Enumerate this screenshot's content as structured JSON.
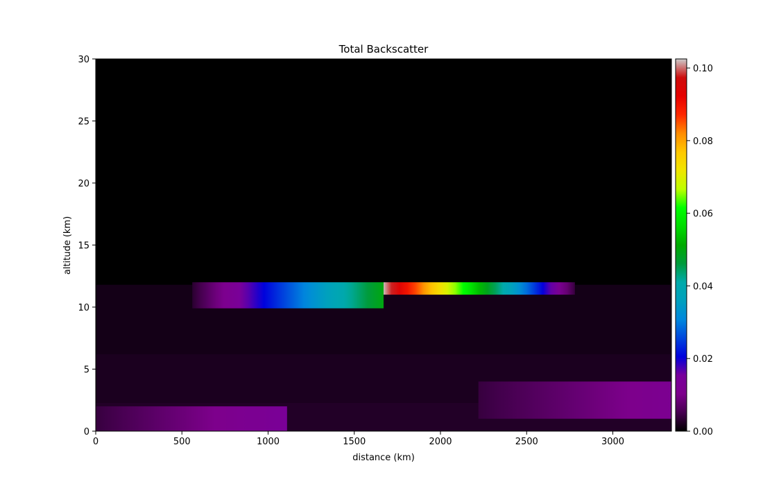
{
  "chart_data": {
    "type": "heatmap",
    "title": "Total Backscatter",
    "xlabel": "distance (km)",
    "ylabel": "altitude (km)",
    "xlim": [
      0,
      3340
    ],
    "ylim": [
      0,
      30
    ],
    "xticks": [
      0,
      500,
      1000,
      1500,
      2000,
      2500,
      3000
    ],
    "yticks": [
      0,
      5,
      10,
      15,
      20,
      25,
      30
    ],
    "colorbar": {
      "colormap": "nipy_spectral",
      "range": [
        0,
        0.1025
      ],
      "ticks": [
        0.0,
        0.02,
        0.04,
        0.06,
        0.08,
        0.1
      ],
      "tick_labels": [
        "0.00",
        "0.02",
        "0.04",
        "0.06",
        "0.08",
        "0.10"
      ]
    },
    "background_value": 0.0,
    "layers": [
      {
        "name": "layer-upper-trop",
        "x_range": [
          0,
          3340
        ],
        "y_range": [
          6.2,
          11.8
        ],
        "value_start": 0.0015,
        "value_end": 0.0015
      },
      {
        "name": "layer-mid-trop",
        "x_range": [
          0,
          3340
        ],
        "y_range": [
          2.3,
          6.2
        ],
        "value_start": 0.002,
        "value_end": 0.002
      },
      {
        "name": "layer-boundary",
        "x_range": [
          0,
          3340
        ],
        "y_range": [
          0,
          2.3
        ],
        "value_start": 0.0025,
        "value_end": 0.0025
      },
      {
        "name": "aerosol-low-west",
        "x_range": [
          0,
          1110
        ],
        "y_range": [
          0,
          2.0
        ],
        "value_start": 0.004,
        "value_end": 0.014
      },
      {
        "name": "aerosol-low-east",
        "x_range": [
          2220,
          3340
        ],
        "y_range": [
          1.0,
          4.0
        ],
        "value_start": 0.004,
        "value_end": 0.012
      },
      {
        "name": "cloud-west",
        "x_range": [
          560,
          1670
        ],
        "y_range": [
          9.9,
          12.0
        ],
        "value_start": 0.003,
        "value_end": 0.05
      },
      {
        "name": "cloud-east",
        "x_range": [
          1670,
          2780
        ],
        "y_range": [
          11.0,
          12.0
        ],
        "value_start": 0.102,
        "value_end": 0.004
      }
    ]
  }
}
